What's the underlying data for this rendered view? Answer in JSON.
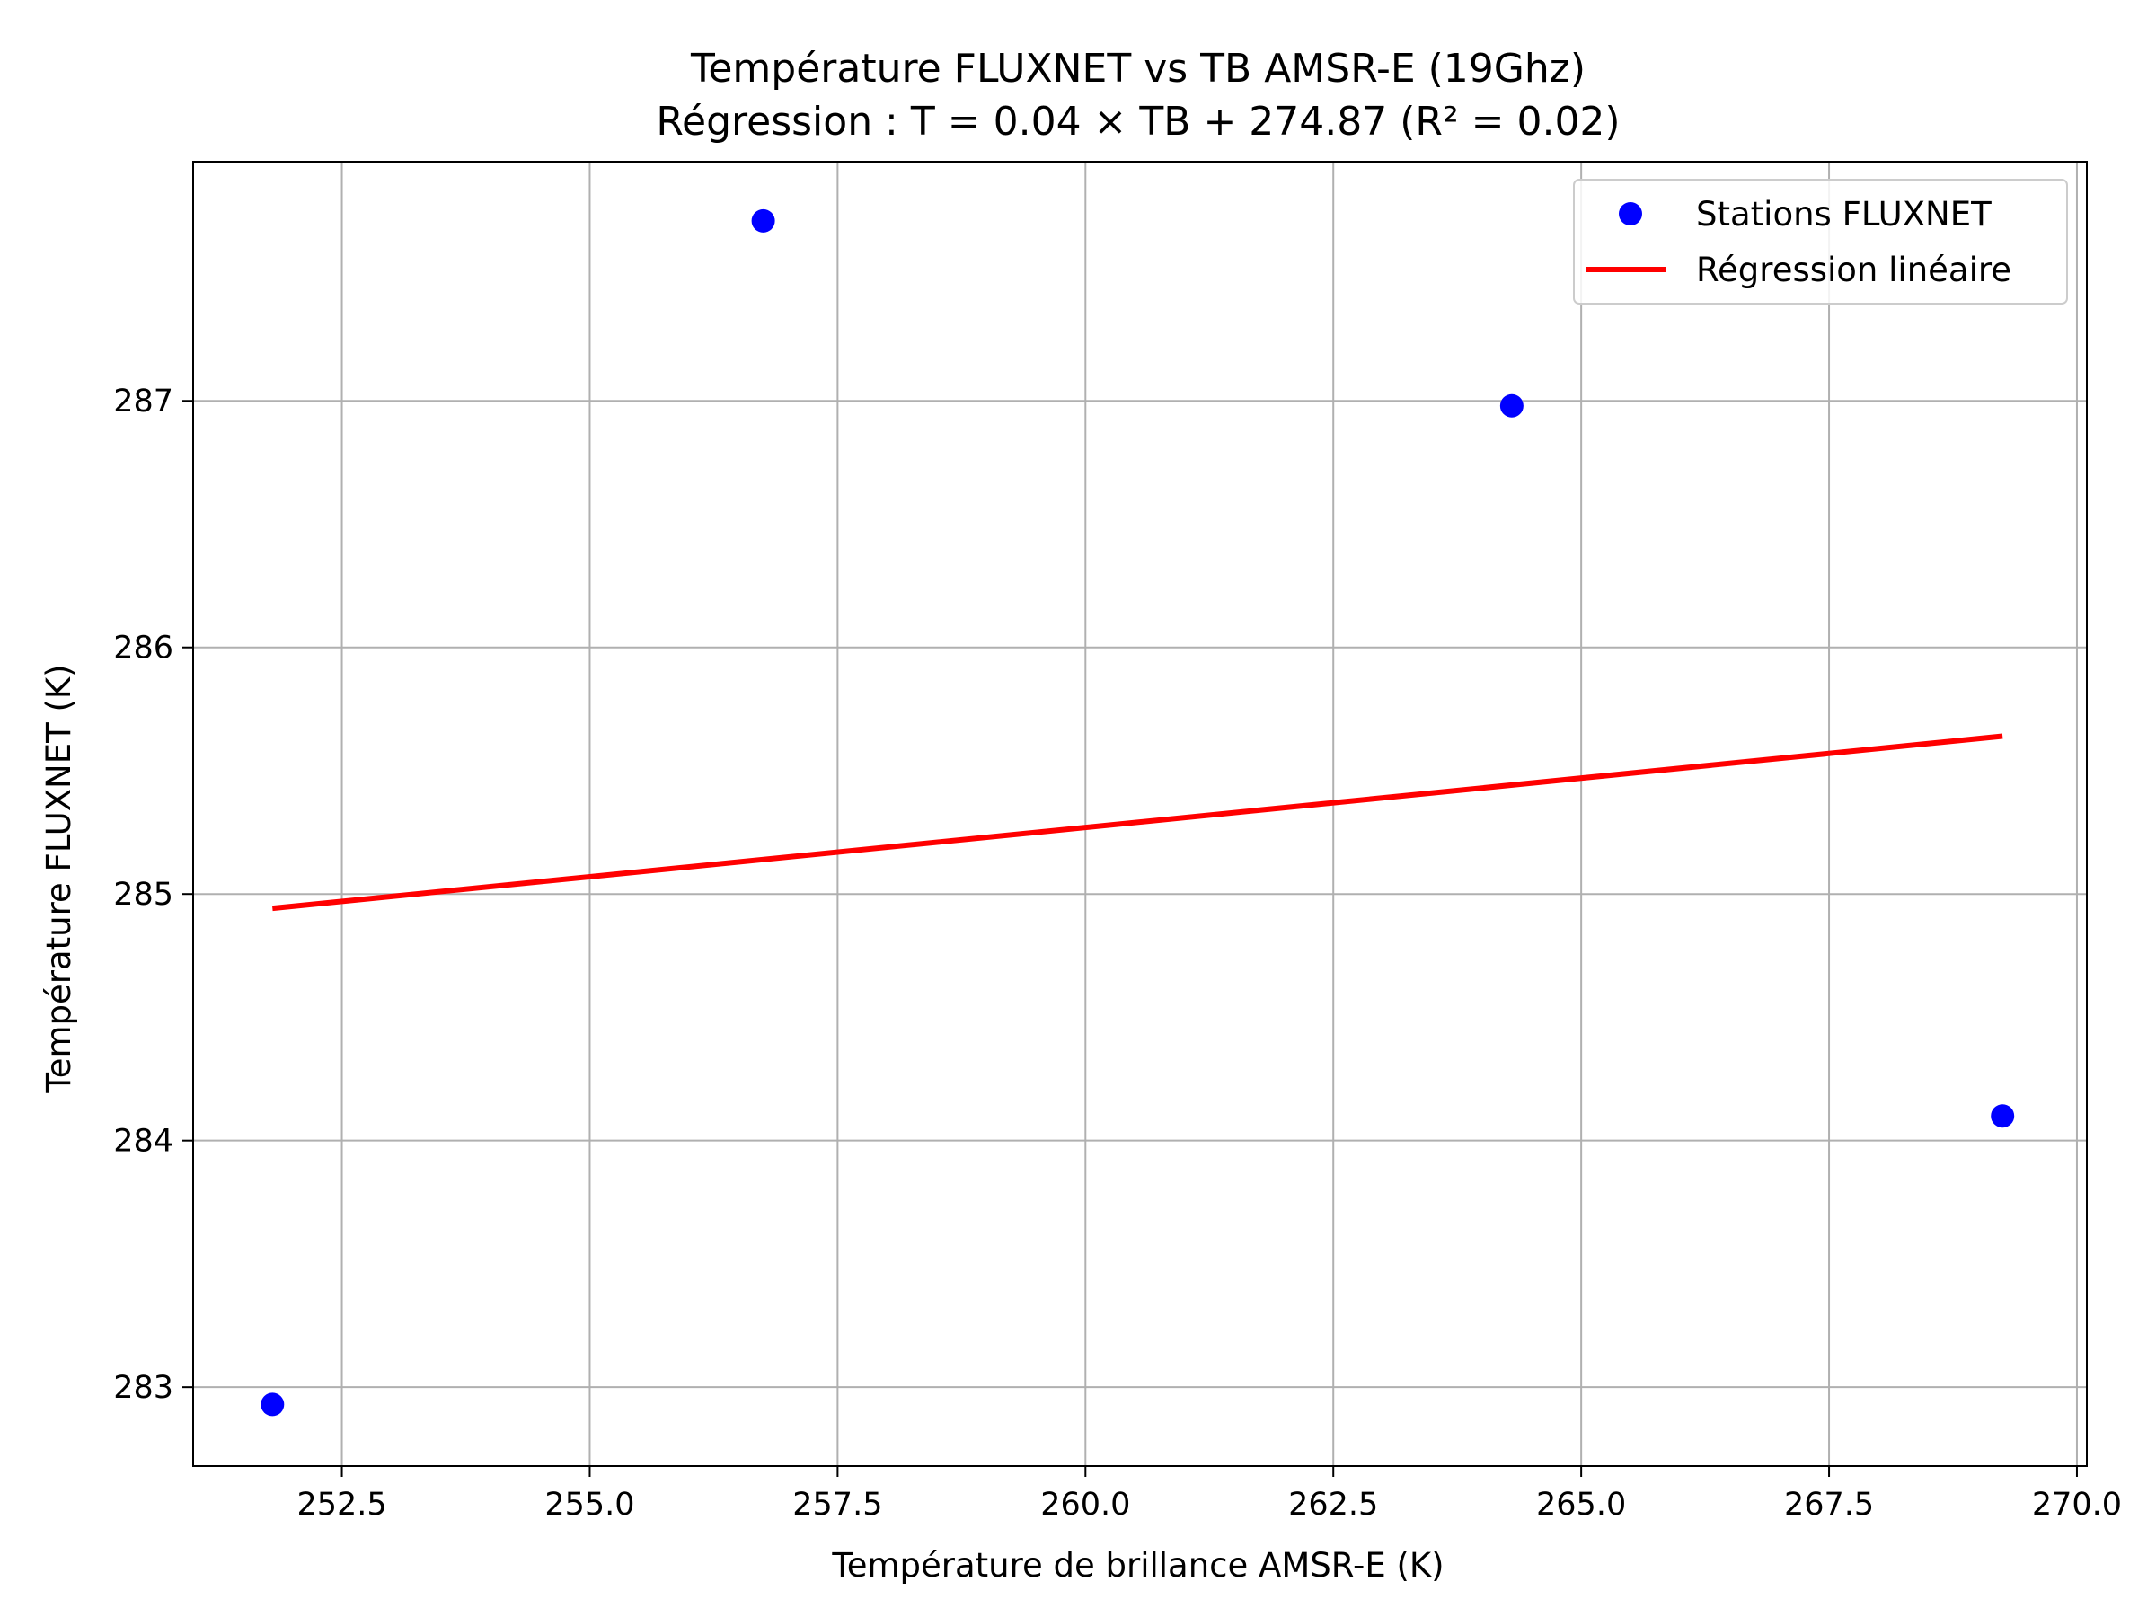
{
  "chart_data": {
    "type": "scatter",
    "title": "Température FLUXNET vs TB AMSR-E (19Ghz)",
    "subtitle": "Régression : T = 0.04 × TB + 274.87 (R² = 0.02)",
    "xlabel": "Température de brillance AMSR-E (K)",
    "ylabel": "Température FLUXNET (K)",
    "xlim": [
      251.0,
      270.1
    ],
    "ylim": [
      282.68,
      287.97
    ],
    "x_ticks": [
      252.5,
      255.0,
      257.5,
      260.0,
      262.5,
      265.0,
      267.5,
      270.0
    ],
    "x_tick_labels": [
      "252.5",
      "255.0",
      "257.5",
      "260.0",
      "262.5",
      "265.0",
      "267.5",
      "270.0"
    ],
    "y_ticks": [
      283,
      284,
      285,
      286,
      287
    ],
    "y_tick_labels": [
      "283",
      "284",
      "285",
      "286",
      "287"
    ],
    "grid": true,
    "legend_position": "top-right",
    "series": [
      {
        "name": "Stations FLUXNET",
        "kind": "scatter",
        "color": "#0000ff",
        "points": [
          {
            "x": 251.8,
            "y": 282.93
          },
          {
            "x": 256.75,
            "y": 287.73
          },
          {
            "x": 264.3,
            "y": 286.98
          },
          {
            "x": 269.25,
            "y": 284.1
          }
        ]
      },
      {
        "name": "Régression linéaire",
        "kind": "line",
        "color": "#ff0000",
        "slope": 0.04,
        "intercept": 274.87,
        "x_range": [
          251.8,
          269.25
        ]
      }
    ]
  }
}
